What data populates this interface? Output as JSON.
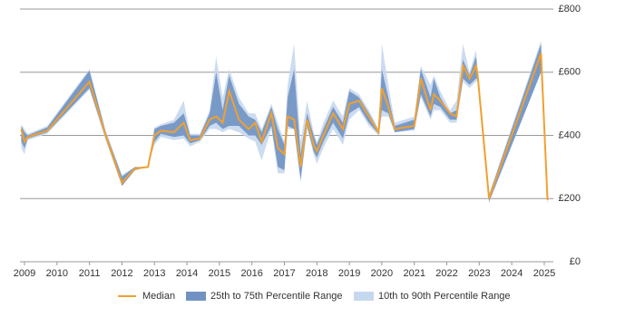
{
  "chart_data": {
    "type": "range-line",
    "x": [
      2008.9,
      2009.0,
      2009.1,
      2009.7,
      2011.0,
      2011.5,
      2012.0,
      2012.4,
      2012.8,
      2013.0,
      2013.2,
      2013.6,
      2013.9,
      2014.1,
      2014.4,
      2014.7,
      2014.9,
      2015.1,
      2015.3,
      2015.6,
      2015.9,
      2016.1,
      2016.3,
      2016.6,
      2016.8,
      2017.0,
      2017.1,
      2017.3,
      2017.5,
      2017.7,
      2017.9,
      2018.0,
      2018.2,
      2018.5,
      2018.8,
      2019.0,
      2019.3,
      2019.6,
      2019.9,
      2020.0,
      2020.2,
      2020.4,
      2021.0,
      2021.2,
      2021.5,
      2021.6,
      2021.8,
      2022.1,
      2022.3,
      2022.5,
      2022.7,
      2022.9,
      2022.95,
      2023.3,
      2024.9,
      2025.1
    ],
    "series": [
      {
        "name": "10th to 90th Percentile Range",
        "color": "#c6d8ee",
        "low": [
          360,
          340,
          385,
          405,
          545,
          385,
          240,
          290,
          300,
          370,
          395,
          385,
          390,
          365,
          380,
          420,
          420,
          410,
          420,
          410,
          390,
          380,
          320,
          420,
          280,
          280,
          420,
          420,
          250,
          420,
          340,
          310,
          360,
          420,
          370,
          450,
          480,
          430,
          400,
          460,
          460,
          410,
          415,
          520,
          450,
          480,
          480,
          440,
          440,
          570,
          550,
          570,
          575,
          185,
          600,
          180
        ],
        "high": [
          435,
          420,
          405,
          430,
          610,
          415,
          275,
          300,
          300,
          425,
          435,
          450,
          510,
          405,
          405,
          480,
          650,
          520,
          610,
          520,
          470,
          470,
          420,
          500,
          440,
          380,
          560,
          690,
          380,
          510,
          410,
          380,
          440,
          510,
          460,
          550,
          530,
          480,
          420,
          690,
          560,
          440,
          460,
          620,
          560,
          590,
          540,
          480,
          510,
          690,
          600,
          670,
          610,
          215,
          700,
          200
        ]
      },
      {
        "name": "25th to 75th Percentile Range",
        "color": "#7092c2",
        "low": [
          380,
          360,
          390,
          410,
          550,
          390,
          240,
          290,
          300,
          380,
          405,
          395,
          400,
          375,
          385,
          430,
          440,
          420,
          430,
          430,
          400,
          400,
          370,
          430,
          300,
          290,
          430,
          420,
          260,
          430,
          350,
          330,
          380,
          440,
          390,
          470,
          490,
          440,
          405,
          480,
          470,
          410,
          420,
          530,
          460,
          500,
          490,
          450,
          450,
          580,
          560,
          580,
          580,
          190,
          600,
          185
        ],
        "high": [
          430,
          410,
          400,
          425,
          605,
          410,
          270,
          300,
          300,
          420,
          430,
          440,
          470,
          400,
          400,
          470,
          600,
          480,
          590,
          500,
          460,
          450,
          410,
          490,
          420,
          370,
          520,
          610,
          340,
          470,
          400,
          370,
          420,
          490,
          440,
          540,
          520,
          470,
          415,
          610,
          520,
          430,
          450,
          610,
          520,
          580,
          520,
          470,
          480,
          640,
          590,
          650,
          600,
          210,
          690,
          200
        ]
      },
      {
        "name": "Median",
        "color": "#f0a030",
        "values": [
          420,
          380,
          395,
          415,
          570,
          400,
          250,
          295,
          300,
          400,
          415,
          410,
          440,
          385,
          390,
          450,
          460,
          440,
          540,
          450,
          420,
          440,
          380,
          470,
          360,
          340,
          460,
          450,
          300,
          450,
          370,
          350,
          400,
          470,
          420,
          500,
          510,
          460,
          410,
          550,
          490,
          420,
          430,
          580,
          480,
          530,
          510,
          470,
          460,
          620,
          580,
          620,
          590,
          200,
          660,
          195
        ]
      }
    ],
    "xlim": [
      2008.86,
      2025.28
    ],
    "xticks": [
      2009,
      2010,
      2011,
      2012,
      2013,
      2014,
      2015,
      2016,
      2017,
      2018,
      2019,
      2020,
      2021,
      2022,
      2023,
      2024,
      2025
    ],
    "ylim": [
      0,
      800
    ],
    "yticks": [
      {
        "value": 0,
        "label": "£0"
      },
      {
        "value": 200,
        "label": "£200"
      },
      {
        "value": 400,
        "label": "£400"
      },
      {
        "value": 600,
        "label": "£600"
      },
      {
        "value": 800,
        "label": "£800"
      }
    ],
    "grid": true,
    "legend": "bottom"
  }
}
